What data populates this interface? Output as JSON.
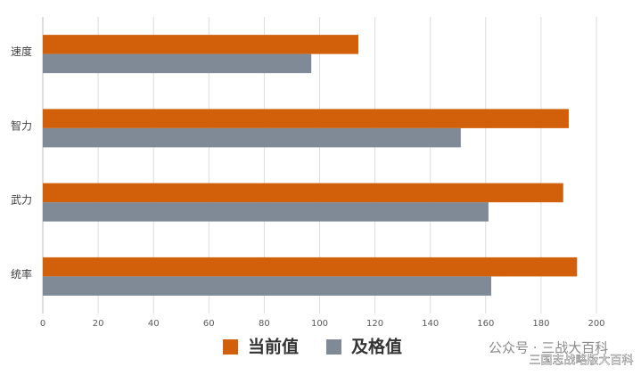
{
  "chart_data": {
    "type": "bar",
    "orientation": "horizontal",
    "categories": [
      "速度",
      "智力",
      "武力",
      "统率"
    ],
    "series": [
      {
        "name": "当前值",
        "color": "#d2600b",
        "values": [
          114,
          190,
          188,
          193
        ]
      },
      {
        "name": "及格值",
        "color": "#7f8a96",
        "values": [
          97,
          151,
          161,
          162
        ]
      }
    ],
    "xlim": [
      0,
      200
    ],
    "xticks": [
      0,
      20,
      40,
      60,
      80,
      100,
      120,
      140,
      160,
      180,
      200
    ],
    "grid": true,
    "legend": "bottom"
  },
  "watermark": {
    "account": "公众号 · 三战大百科",
    "site": "三国志战略版大百科"
  }
}
